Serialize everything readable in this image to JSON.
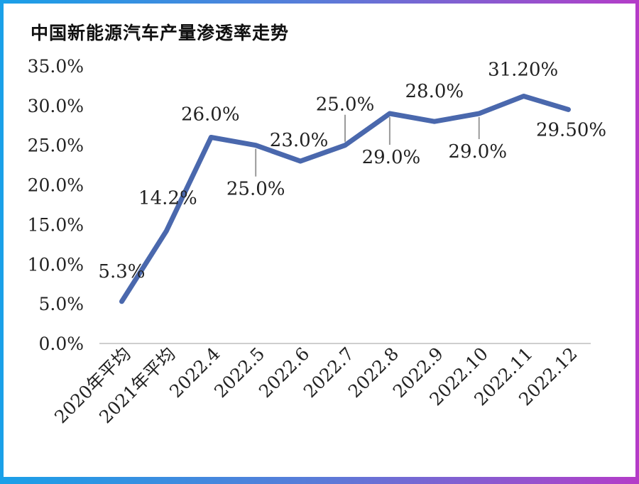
{
  "chart_data": {
    "type": "line",
    "title": "中国新能源汽车产量渗透率走势",
    "categories": [
      "2020年平均",
      "2021年平均",
      "2022.4",
      "2022.5",
      "2022.6",
      "2022.7",
      "2022.8",
      "2022.9",
      "2022.10",
      "2022.11",
      "2022.12"
    ],
    "series": [
      {
        "values": [
          5.3,
          14.2,
          26.0,
          25.0,
          23.0,
          25.0,
          29.0,
          28.0,
          29.0,
          31.2,
          29.5
        ]
      }
    ],
    "data_labels": [
      "5.3%",
      "14.2%",
      "26.0%",
      "25.0%",
      "23.0%",
      "25.0%",
      "29.0%",
      "28.0%",
      "29.0%",
      "31.20%",
      "29.50%"
    ],
    "ylim": [
      0,
      35
    ],
    "yticks": [
      "0.0%",
      "5.0%",
      "10.0%",
      "15.0%",
      "20.0%",
      "25.0%",
      "30.0%",
      "35.0%"
    ],
    "line_color": "#4a68ad",
    "grid": false,
    "legend": "none"
  }
}
